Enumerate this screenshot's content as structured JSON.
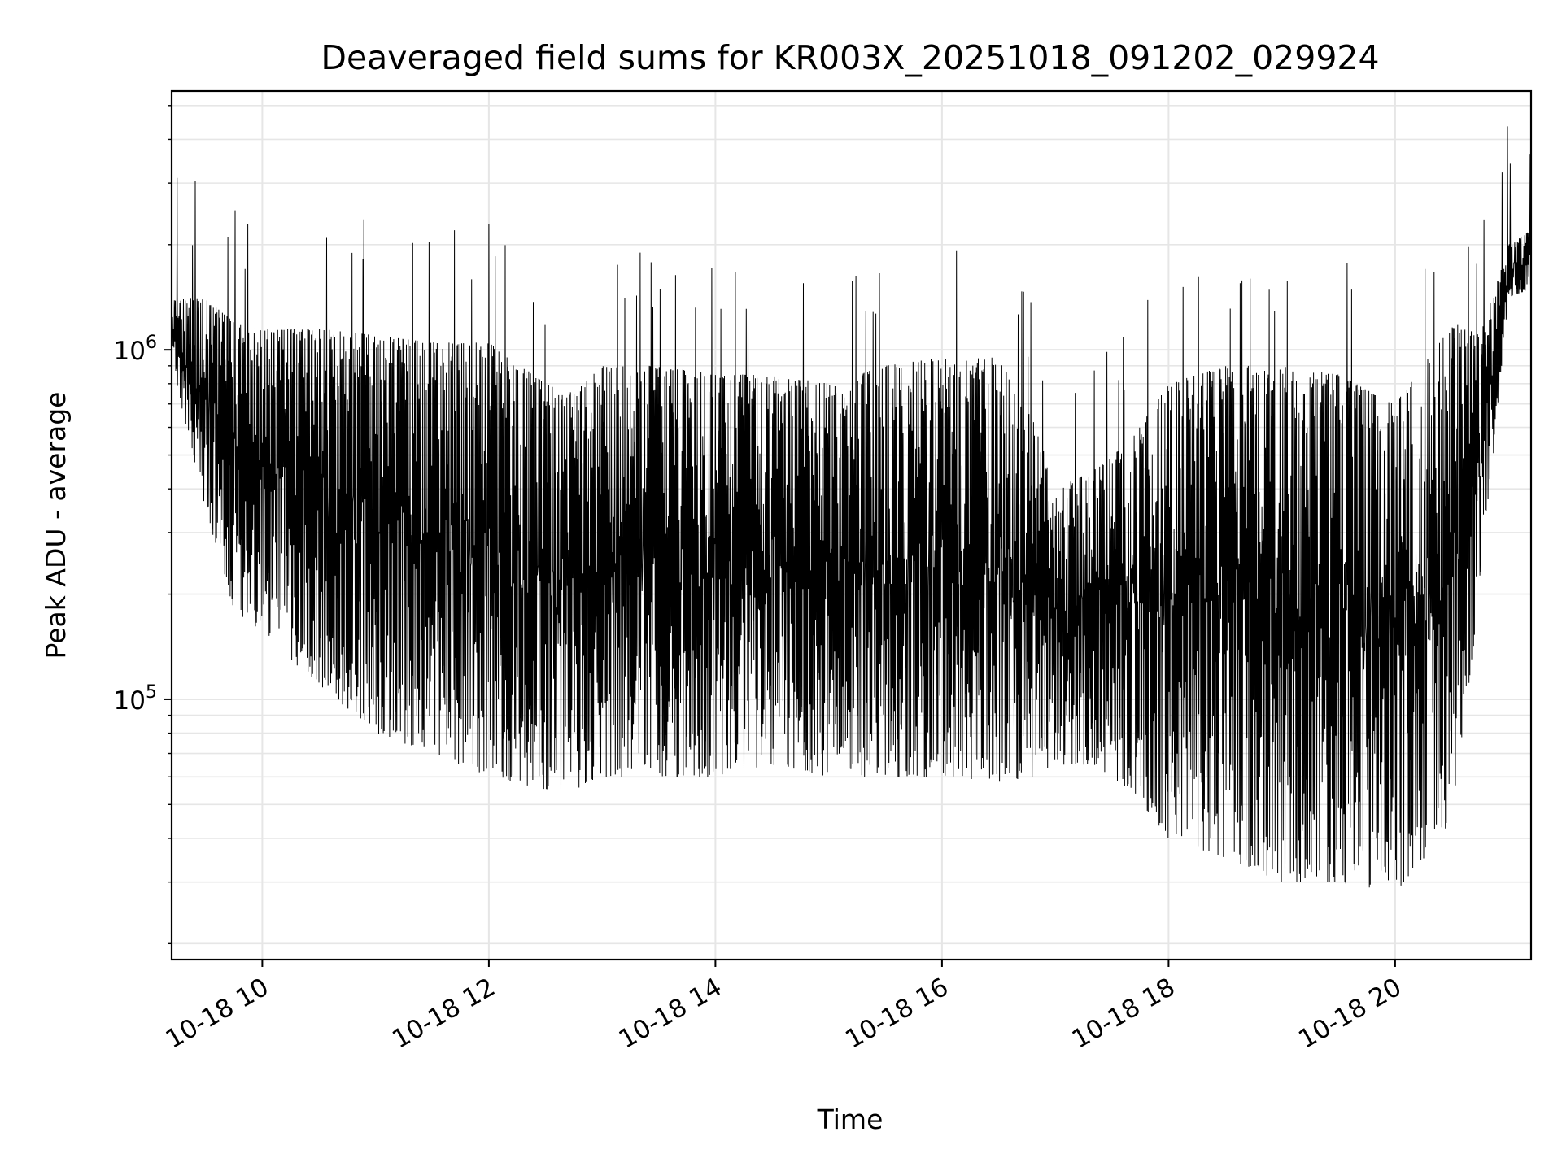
{
  "chart_data": {
    "type": "line",
    "title": "Deaveraged field sums for KR003X_20251018_091202_029924",
    "xlabel": "Time",
    "ylabel": "Peak ADU - average",
    "yscale": "log",
    "grid": true,
    "line_color": "#000000",
    "grid_color": "#e6e6e6",
    "xlim": [
      "10-18 09:12",
      "10-18 21:12"
    ],
    "ylim": [
      18000,
      5500000
    ],
    "x_ticks": [
      {
        "hour": 10,
        "label": "10-18 10"
      },
      {
        "hour": 12,
        "label": "10-18 12"
      },
      {
        "hour": 14,
        "label": "10-18 14"
      },
      {
        "hour": 16,
        "label": "10-18 16"
      },
      {
        "hour": 18,
        "label": "10-18 18"
      },
      {
        "hour": 20,
        "label": "10-18 20"
      }
    ],
    "y_ticks": [
      {
        "value": 100000,
        "base": "10",
        "exp": "5"
      },
      {
        "value": 1000000,
        "base": "10",
        "exp": "6"
      }
    ],
    "series": [
      {
        "note_envelope": "upper and lower envelope of a dense oscillating series",
        "x": [
          "10-18 09:12",
          "10-18 09:30",
          "10-18 09:45",
          "10-18 10:00",
          "10-18 10:30",
          "10-18 11:00",
          "10-18 11:30",
          "10-18 12:00",
          "10-18 12:30",
          "10-18 12:45",
          "10-18 13:00",
          "10-18 13:30",
          "10-18 14:00",
          "10-18 14:30",
          "10-18 15:00",
          "10-18 15:30",
          "10-18 16:00",
          "10-18 16:30",
          "10-18 16:50",
          "10-18 17:00",
          "10-18 17:20",
          "10-18 17:40",
          "10-18 18:00",
          "10-18 18:30",
          "10-18 19:00",
          "10-18 19:30",
          "10-18 20:00",
          "10-18 20:15",
          "10-18 20:30",
          "10-18 20:45",
          "10-18 21:00",
          "10-18 21:12"
        ],
        "upper": [
          1400000,
          1400000,
          1200000,
          1150000,
          1150000,
          1100000,
          1050000,
          1050000,
          800000,
          750000,
          900000,
          900000,
          850000,
          850000,
          800000,
          900000,
          950000,
          950000,
          600000,
          400000,
          450000,
          550000,
          800000,
          900000,
          900000,
          850000,
          700000,
          900000,
          1200000,
          1100000,
          2000000,
          2200000
        ],
        "lower": [
          900000,
          350000,
          180000,
          150000,
          110000,
          80000,
          70000,
          60000,
          55000,
          55000,
          60000,
          60000,
          60000,
          65000,
          60000,
          60000,
          60000,
          58000,
          60000,
          65000,
          65000,
          55000,
          40000,
          35000,
          30000,
          30000,
          28000,
          35000,
          45000,
          200000,
          1400000,
          1500000
        ]
      }
    ]
  }
}
